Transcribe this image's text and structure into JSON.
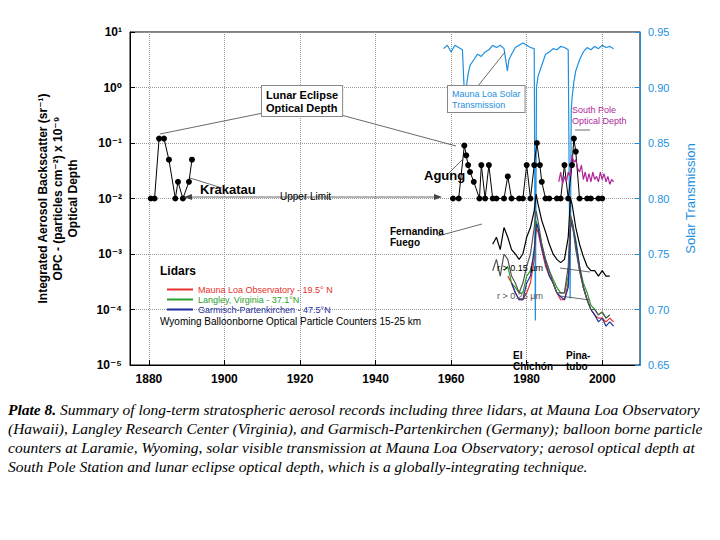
{
  "chart_data": {
    "type": "line",
    "y_label": "Integrated Aerosol Backscatter (sr⁻¹)\nOPC - (particles cm⁻²) x 10⁻⁹\nOptical Depth",
    "y2_label": "Solar Transmission",
    "log": "y",
    "grid": true,
    "legend": "left",
    "xlim": [
      1875,
      2010
    ],
    "xticks": [
      1880,
      1900,
      1920,
      1940,
      1960,
      1980,
      2000
    ],
    "ylim": [
      1e-05,
      10
    ],
    "yticks": [
      {
        "value": 10,
        "label": "10¹"
      },
      {
        "value": 1,
        "label": "10⁰"
      },
      {
        "value": 0.1,
        "label": "10⁻¹"
      },
      {
        "value": 0.01,
        "label": "10⁻²"
      },
      {
        "value": 0.001,
        "label": "10⁻³"
      },
      {
        "value": 0.0001,
        "label": "10⁻⁴"
      },
      {
        "value": 1e-05,
        "label": "10⁻⁵"
      }
    ],
    "y2lim": [
      0.65,
      0.95
    ],
    "y2ticks": [
      0.65,
      {
        "value": 0.7,
        "label": "0.70"
      },
      0.75,
      {
        "value": 0.8,
        "label": "0.80"
      },
      0.85,
      {
        "value": 0.9,
        "label": "0.90"
      },
      0.95
    ],
    "series": [
      {
        "name": "Mauna Loa Observatory - 19.5° N",
        "color": "#e8302a",
        "line_style": "solid",
        "x": [
          1975,
          1976,
          1977,
          1978,
          1979,
          1980,
          1981,
          1982,
          1982.5,
          1983,
          1984,
          1985,
          1986,
          1987,
          1988,
          1989,
          1990,
          1991,
          1991.6,
          1992,
          1993,
          1994,
          1995,
          1996,
          1997,
          1998,
          1999,
          2000,
          2001,
          2002,
          2003
        ],
        "values": [
          0.0004,
          0.0003,
          0.0002,
          0.00015,
          0.00015,
          0.0002,
          0.0003,
          0.0008,
          0.003,
          0.0025,
          0.0012,
          0.0006,
          0.0004,
          0.0003,
          0.0002,
          0.00015,
          0.00015,
          0.0003,
          0.003,
          0.0035,
          0.0015,
          0.0005,
          0.00025,
          0.00015,
          0.0001,
          8e-05,
          7e-05,
          7e-05,
          6e-05,
          7e-05,
          6e-05
        ]
      },
      {
        "name": "Langley, Virginia - 37.1°N",
        "color": "#2ca02c",
        "line_style": "solid",
        "x": [
          1974,
          1975,
          1976,
          1977,
          1978,
          1979,
          1980,
          1981,
          1982,
          1982.5,
          1983,
          1984,
          1985,
          1986,
          1987,
          1988,
          1989,
          1990,
          1991,
          1991.6,
          1992,
          1993,
          1994,
          1995,
          1996,
          1997,
          1998,
          1999,
          2000,
          2001,
          2002
        ],
        "values": [
          0.0005,
          0.0006,
          0.0003,
          0.00025,
          0.0002,
          0.0002,
          0.0004,
          0.0005,
          0.001,
          0.004,
          0.003,
          0.0015,
          0.0008,
          0.0005,
          0.00035,
          0.00025,
          0.0002,
          0.0002,
          0.0004,
          0.004,
          0.004,
          0.0018,
          0.0006,
          0.0003,
          0.0002,
          0.00012,
          0.0001,
          8e-05,
          9e-05,
          7e-05,
          8e-05
        ]
      },
      {
        "name": "Garmisch-Partenkirchen - 47.5°N",
        "color": "#1f2f9e",
        "line_style": "solid",
        "x": [
          1976,
          1977,
          1978,
          1979,
          1980,
          1981,
          1982,
          1982.6,
          1983,
          1984,
          1985,
          1986,
          1987,
          1988,
          1989,
          1990,
          1991,
          1991.6,
          1992,
          1993,
          1994,
          1995,
          1996,
          1997,
          1998,
          1999,
          2000,
          2001,
          2002,
          2003
        ],
        "values": [
          0.0003,
          0.0002,
          0.00015,
          0.00015,
          0.0003,
          0.0004,
          0.0012,
          0.0035,
          0.003,
          0.0013,
          0.0007,
          0.0004,
          0.0003,
          0.0002,
          0.00017,
          0.00015,
          0.00025,
          0.003,
          0.004,
          0.0016,
          0.0006,
          0.00025,
          0.00015,
          0.0001,
          8e-05,
          6e-05,
          7e-05,
          5e-05,
          6e-05,
          5e-05
        ]
      },
      {
        "name": "r > 0.15 µm",
        "color": "#000000",
        "line_style": "solid",
        "x": [
          1971,
          1972,
          1973,
          1974,
          1975,
          1976,
          1977,
          1978,
          1979,
          1980,
          1981,
          1982,
          1982.5,
          1983,
          1984,
          1985,
          1986,
          1987,
          1988,
          1989,
          1990,
          1991,
          1991.6,
          1992,
          1993,
          1994,
          1995,
          1996,
          1997,
          1998,
          1999,
          2000,
          2001,
          2002
        ],
        "values": [
          0.0015,
          0.002,
          0.0012,
          0.003,
          0.002,
          0.0012,
          0.001,
          0.0008,
          0.001,
          0.002,
          0.003,
          0.006,
          0.012,
          0.008,
          0.004,
          0.0025,
          0.0015,
          0.001,
          0.0008,
          0.0007,
          0.0008,
          0.002,
          0.01,
          0.008,
          0.003,
          0.0015,
          0.0009,
          0.0006,
          0.0005,
          0.0005,
          0.0004,
          0.0005,
          0.0004,
          0.0004
        ]
      },
      {
        "name": "r > 0.25 µm",
        "color": "#555555",
        "line_style": "solid",
        "x": [
          1971,
          1972,
          1973,
          1974,
          1975,
          1976,
          1977,
          1978,
          1979,
          1980,
          1981,
          1982,
          1982.5,
          1983,
          1984,
          1985,
          1986,
          1987,
          1988,
          1989,
          1990,
          1991,
          1991.6,
          1992,
          1993,
          1994,
          1995,
          1996,
          1997,
          1998,
          1999,
          2000,
          2001,
          2002
        ],
        "values": [
          0.0005,
          0.0008,
          0.0004,
          0.001,
          0.0008,
          0.0004,
          0.0003,
          0.0002,
          0.0003,
          0.0006,
          0.001,
          0.003,
          0.006,
          0.004,
          0.0015,
          0.0008,
          0.0005,
          0.0003,
          0.0002,
          0.0002,
          0.0002,
          0.0006,
          0.005,
          0.004,
          0.0012,
          0.0005,
          0.00025,
          0.00015,
          0.0001,
          0.0001,
          8e-05,
          9e-05,
          7e-05,
          8e-05
        ]
      },
      {
        "name": "Lunar Eclipse\nOptical Depth",
        "color": "#000000",
        "marker": "circle",
        "line_style": "solid",
        "x": [
          1880.5,
          1881.5,
          1882.7,
          1884,
          1885.3,
          1887,
          1887.7,
          1889,
          1890.6,
          1891.4,
          null,
          1960.5,
          1962,
          1963.5,
          1964,
          1964.5,
          1965,
          1966,
          1967.5,
          1968,
          1969,
          1970,
          1971,
          1972,
          1974,
          1975,
          1976,
          1978,
          1979,
          1980,
          1981,
          1982,
          1982.7,
          1983.5,
          1984,
          1985,
          1986,
          1988,
          1989,
          1990,
          1991,
          1992,
          1992.5,
          1993,
          1994,
          1996,
          1997,
          1999,
          2000
        ],
        "values": [
          0.01,
          0.01,
          0.12,
          0.12,
          0.05,
          0.01,
          0.02,
          0.01,
          0.02,
          0.05,
          null,
          0.01,
          0.01,
          0.09,
          0.06,
          0.04,
          0.03,
          0.02,
          0.01,
          0.04,
          0.01,
          0.04,
          0.01,
          0.01,
          0.01,
          0.025,
          0.01,
          0.01,
          0.01,
          0.04,
          0.01,
          0.04,
          0.1,
          0.04,
          0.02,
          0.01,
          0.01,
          0.01,
          0.01,
          0.04,
          0.01,
          0.04,
          0.12,
          0.07,
          0.01,
          0.01,
          0.01,
          0.01,
          0.01
        ]
      },
      {
        "name": "South Pole\nOptical Depth",
        "color": "#b0279a",
        "line_style": "solid",
        "x": [
          1988.5,
          1989,
          1989.5,
          1990,
          1990.5,
          1991,
          1991.5,
          1992,
          1992.5,
          1993,
          1993.5,
          1994,
          1994.5,
          1995,
          1995.5,
          1996,
          1996.5,
          1997,
          1997.5,
          1998,
          1998.5,
          1999,
          1999.5,
          2000,
          2000.5,
          2001,
          2001.5,
          2002,
          2002.5,
          2003
        ],
        "values": [
          0.02,
          0.03,
          0.018,
          0.025,
          0.02,
          0.03,
          0.025,
          0.06,
          0.045,
          0.05,
          0.035,
          0.03,
          0.04,
          0.022,
          0.03,
          0.02,
          0.028,
          0.02,
          0.03,
          0.022,
          0.025,
          0.02,
          0.03,
          0.022,
          0.028,
          0.02,
          0.025,
          0.018,
          0.022,
          0.02
        ]
      },
      {
        "name": "Mauna Loa Solar\nTransmission",
        "color": "#1e90e0",
        "line_style": "solid",
        "axis": "y2",
        "x": [
          1958,
          1959,
          1960,
          1961,
          1962,
          1963,
          1963.3,
          1963.6,
          1964,
          1964.5,
          1965,
          1966,
          1967,
          1968,
          1969,
          1970,
          1971,
          1972,
          1973,
          1974,
          1974.9,
          1975.3,
          1976,
          1977,
          1978,
          1979,
          1980,
          1981,
          1982,
          1982.3,
          1982.6,
          1983,
          1984,
          1985,
          1986,
          1987,
          1988,
          1989,
          1990,
          1991,
          1991.5,
          1991.8,
          1992,
          1992.5,
          1993,
          1994,
          1995,
          1996,
          1997,
          1998,
          1999,
          2000,
          2001,
          2002,
          2003
        ],
        "values": [
          0.935,
          0.938,
          0.932,
          0.938,
          0.936,
          0.934,
          0.91,
          0.89,
          0.9,
          0.912,
          0.92,
          0.925,
          0.93,
          0.928,
          0.932,
          0.934,
          0.938,
          0.936,
          0.938,
          0.935,
          0.915,
          0.925,
          0.93,
          0.936,
          0.938,
          0.94,
          0.938,
          0.936,
          0.935,
          0.69,
          0.9,
          0.91,
          0.92,
          0.93,
          0.932,
          0.935,
          0.934,
          0.937,
          0.936,
          0.934,
          0.71,
          0.88,
          0.89,
          0.905,
          0.915,
          0.925,
          0.932,
          0.936,
          0.934,
          0.937,
          0.935,
          0.938,
          0.936,
          0.937,
          0.935
        ]
      }
    ],
    "annotations": [
      "Krakatau",
      "Agung",
      "Fernandina\nFuego",
      "Upper Limit",
      "Lidars",
      "Wyoming Balloonborne Optical Particle Counters 15-25 km",
      "El\nChichón",
      "Pina-\ntubo"
    ],
    "caption": {
      "label": "Plate 8.",
      "text": "Summary of long-term stratospheric aerosol records including three lidars, at Mauna Loa Observatory (Hawaii), Langley Research Center (Virginia), and Garmisch-Partenkirchen (Germany); balloon borne particle counters at Laramie, Wyoming, solar visible transmission at Mauna Loa Observatory; aerosol optical depth at South Pole Station and lunar eclipse optical depth, which is a globally-integrating technique."
    }
  }
}
